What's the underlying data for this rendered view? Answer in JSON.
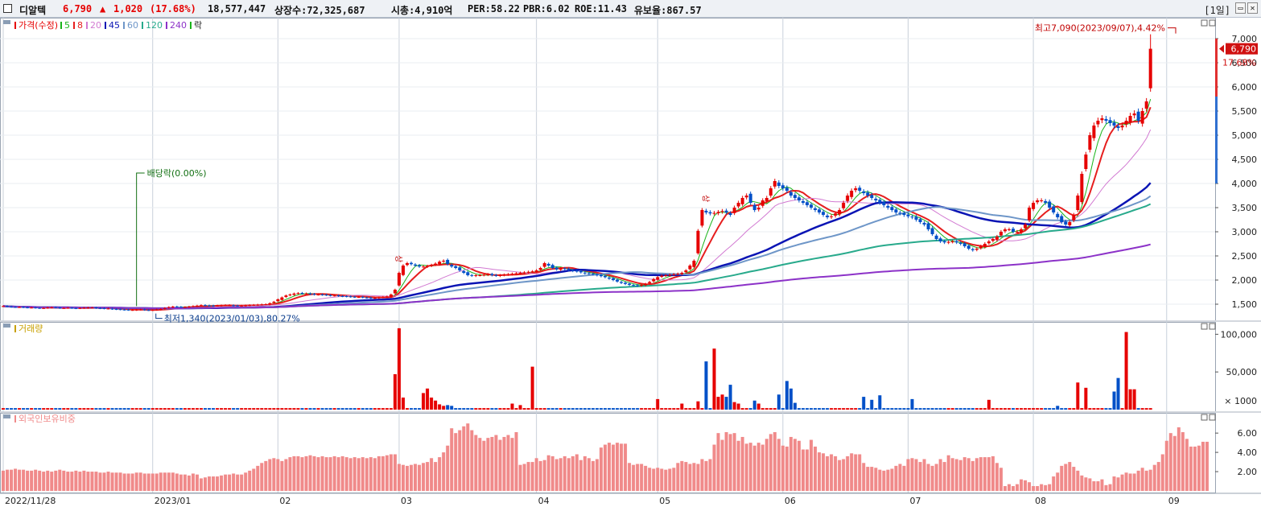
{
  "header": {
    "name": "디알텍",
    "price": "6,790",
    "change_arrow": "▲",
    "change": "1,020",
    "change_pct": "(17.68%)",
    "volume": "18,577,447",
    "listed_shares": "상장수:72,325,687",
    "market_cap": "시총:4,910억",
    "per": "PER:58.22",
    "pbr": "PBR:6.02",
    "roe": "ROE:11.43",
    "reserve_ratio": "유보율:867.57",
    "period": "[1일]",
    "colors": {
      "up": "#e60000",
      "down": "#0050c8"
    }
  },
  "legend": {
    "price_label": "가격(수정)",
    "ma_labels": [
      "5",
      "8",
      "20",
      "45",
      "60",
      "120",
      "240"
    ],
    "ma_colors": [
      "#19b419",
      "#e61e1e",
      "#d27ad2",
      "#0a14b4",
      "#6e96c8",
      "#28aa8c",
      "#8c32c8"
    ],
    "drop_label": "락",
    "volume_label": "거래량",
    "foreign_label": "외국인보유비중"
  },
  "annotations": {
    "high": "최고7,090(2023/09/07),4.42%",
    "low": "최저1,340(2023/01/03),80.27%",
    "dividend": "배당락(0.00%)",
    "up_mark": "상",
    "current_price": "6,790",
    "current_pct": "17.68%",
    "volume_unit": "× 1000"
  },
  "chart_data": [
    {
      "type": "candlestick",
      "title": "가격(수정)",
      "ylim": [
        1200,
        7300
      ],
      "y_ticks": [
        "1,500",
        "2,000",
        "2,500",
        "3,000",
        "3,500",
        "4,000",
        "4,500",
        "5,000",
        "5,500",
        "6,000",
        "6,500",
        "7,000"
      ],
      "y_tick_values": [
        1500,
        2000,
        2500,
        3000,
        3500,
        4000,
        4500,
        5000,
        5500,
        6000,
        6500,
        7000
      ],
      "x_ticks": [
        "2022/11/28",
        "2023/01",
        "02",
        "03",
        "04",
        "05",
        "06",
        "07",
        "08",
        "09"
      ],
      "x_tick_index": [
        0,
        37,
        68,
        98,
        132,
        162,
        193,
        224,
        255,
        288
      ],
      "closes": [
        1460,
        1450,
        1445,
        1440,
        1440,
        1435,
        1430,
        1430,
        1425,
        1420,
        1420,
        1430,
        1435,
        1430,
        1420,
        1420,
        1425,
        1420,
        1415,
        1420,
        1425,
        1430,
        1430,
        1420,
        1415,
        1410,
        1410,
        1400,
        1395,
        1390,
        1385,
        1380,
        1380,
        1385,
        1390,
        1380,
        1375,
        1380,
        1390,
        1400,
        1420,
        1440,
        1450,
        1445,
        1440,
        1440,
        1450,
        1460,
        1470,
        1480,
        1475,
        1470,
        1465,
        1470,
        1475,
        1480,
        1480,
        1470,
        1465,
        1470,
        1475,
        1480,
        1485,
        1490,
        1495,
        1500,
        1520,
        1550,
        1600,
        1640,
        1680,
        1700,
        1720,
        1730,
        1720,
        1720,
        1710,
        1700,
        1700,
        1695,
        1690,
        1680,
        1680,
        1670,
        1665,
        1660,
        1655,
        1650,
        1650,
        1640,
        1635,
        1630,
        1630,
        1640,
        1650,
        1660,
        1700,
        1800,
        2150,
        2300,
        2350,
        2330,
        2300,
        2280,
        2280,
        2290,
        2310,
        2340,
        2380,
        2400,
        2330,
        2280,
        2250,
        2200,
        2150,
        2100,
        2090,
        2100,
        2100,
        2110,
        2120,
        2100,
        2090,
        2100,
        2110,
        2120,
        2130,
        2140,
        2150,
        2160,
        2170,
        2180,
        2200,
        2250,
        2350,
        2300,
        2250,
        2220,
        2240,
        2230,
        2210,
        2190,
        2180,
        2160,
        2140,
        2130,
        2120,
        2100,
        2080,
        2060,
        2030,
        2000,
        1970,
        1940,
        1920,
        1900,
        1890,
        1880,
        1900,
        1920,
        1960,
        2020,
        2060,
        2090,
        2100,
        2110,
        2120,
        2130,
        2150,
        2200,
        2300,
        2400,
        3020,
        3450,
        3400,
        3380,
        3390,
        3410,
        3430,
        3400,
        3350,
        3500,
        3600,
        3700,
        3750,
        3600,
        3450,
        3500,
        3650,
        3700,
        3900,
        4050,
        3950,
        3900,
        3850,
        3750,
        3700,
        3650,
        3600,
        3550,
        3500,
        3450,
        3400,
        3350,
        3300,
        3320,
        3380,
        3450,
        3600,
        3750,
        3850,
        3900,
        3850,
        3800,
        3750,
        3700,
        3650,
        3600,
        3550,
        3500,
        3450,
        3400,
        3380,
        3350,
        3320,
        3300,
        3250,
        3200,
        3150,
        3050,
        2950,
        2850,
        2800,
        2780,
        2790,
        2800,
        2780,
        2750,
        2700,
        2650,
        2620,
        2650,
        2700,
        2750,
        2800,
        2850,
        2900,
        3000,
        3050,
        3050,
        3000,
        3000,
        3050,
        3150,
        3500,
        3600,
        3650,
        3650,
        3600,
        3500,
        3400,
        3300,
        3200,
        3150,
        3200,
        3350,
        3750,
        4200,
        4600,
        5000,
        5200,
        5300,
        5350,
        5300,
        5250,
        5200,
        5150,
        5200,
        5300,
        5400,
        5450,
        5300,
        5500,
        5700,
        6790
      ],
      "current_close": 6790,
      "high": 7090,
      "low": 1340,
      "series": [
        {
          "name": "5",
          "values": []
        },
        {
          "name": "8",
          "values": []
        },
        {
          "name": "20",
          "values": []
        },
        {
          "name": "45",
          "values": []
        },
        {
          "name": "60",
          "values": []
        },
        {
          "name": "120",
          "values": []
        },
        {
          "name": "240",
          "values": []
        }
      ]
    },
    {
      "type": "bar",
      "title": "거래량",
      "ylim": [
        0,
        110000
      ],
      "y_ticks": [
        "50,000",
        "100,000"
      ],
      "y_tick_values": [
        50000,
        100000
      ],
      "unit": "× 1000",
      "spikes": [
        [
          97,
          47000
        ],
        [
          98,
          108000
        ],
        [
          99,
          16000
        ],
        [
          104,
          22000
        ],
        [
          105,
          28000
        ],
        [
          106,
          16000
        ],
        [
          107,
          12000
        ],
        [
          108,
          7000
        ],
        [
          109,
          5000
        ],
        [
          110,
          6000
        ],
        [
          111,
          5000
        ],
        [
          126,
          8000
        ],
        [
          128,
          6000
        ],
        [
          131,
          57000
        ],
        [
          162,
          14000
        ],
        [
          168,
          8000
        ],
        [
          172,
          11000
        ],
        [
          174,
          64000
        ],
        [
          176,
          81000
        ],
        [
          177,
          17000
        ],
        [
          178,
          20000
        ],
        [
          179,
          17000
        ],
        [
          180,
          33000
        ],
        [
          181,
          10000
        ],
        [
          182,
          8000
        ],
        [
          186,
          12000
        ],
        [
          187,
          8000
        ],
        [
          192,
          20000
        ],
        [
          194,
          38000
        ],
        [
          195,
          28000
        ],
        [
          196,
          9000
        ],
        [
          213,
          17000
        ],
        [
          215,
          13000
        ],
        [
          217,
          19000
        ],
        [
          225,
          14000
        ],
        [
          244,
          13000
        ],
        [
          261,
          5000
        ],
        [
          266,
          36000
        ],
        [
          268,
          29000
        ],
        [
          275,
          24000
        ],
        [
          276,
          42000
        ],
        [
          278,
          103000
        ],
        [
          279,
          27000
        ],
        [
          280,
          27000
        ],
        [
          290,
          10000
        ],
        [
          292,
          14000
        ]
      ],
      "base": 2000
    },
    {
      "type": "bar",
      "title": "외국인보유비중",
      "ylim": [
        0,
        7.6
      ],
      "y_ticks": [
        "2.00",
        "4.00",
        "6.00"
      ],
      "y_tick_values": [
        2,
        4,
        6
      ],
      "values": [
        2.1,
        2.2,
        2.2,
        2.3,
        2.2,
        2.2,
        2.1,
        2.1,
        2.2,
        2.1,
        2.0,
        2.1,
        2.0,
        2.1,
        2.2,
        2.1,
        2.0,
        2.0,
        2.1,
        2.0,
        2.1,
        2.0,
        2.0,
        2.0,
        1.9,
        1.9,
        2.0,
        1.9,
        1.9,
        1.9,
        1.8,
        1.8,
        1.8,
        1.9,
        1.9,
        1.8,
        1.8,
        1.8,
        1.8,
        1.9,
        1.9,
        1.9,
        1.9,
        1.8,
        1.7,
        1.7,
        1.6,
        1.8,
        1.7,
        1.3,
        1.4,
        1.5,
        1.5,
        1.5,
        1.6,
        1.7,
        1.7,
        1.8,
        1.7,
        1.7,
        1.9,
        2.1,
        2.3,
        2.6,
        2.9,
        3.1,
        3.3,
        3.4,
        3.3,
        3.1,
        3.3,
        3.5,
        3.6,
        3.6,
        3.5,
        3.6,
        3.7,
        3.6,
        3.5,
        3.6,
        3.5,
        3.5,
        3.6,
        3.5,
        3.6,
        3.5,
        3.4,
        3.5,
        3.4,
        3.5,
        3.4,
        3.5,
        3.4,
        3.6,
        3.6,
        3.7,
        3.8,
        3.8,
        2.8,
        2.7,
        2.6,
        2.7,
        2.8,
        2.7,
        2.9,
        3.0,
        3.4,
        3.0,
        3.5,
        4.0,
        4.7,
        6.5,
        6.0,
        6.3,
        6.7,
        7.0,
        6.3,
        5.8,
        5.5,
        5.2,
        5.5,
        5.6,
        5.8,
        5.3,
        5.6,
        5.8,
        5.5,
        6.1,
        2.7,
        2.8,
        3.0,
        3.0,
        3.4,
        3.1,
        3.2,
        3.7,
        3.6,
        3.3,
        3.4,
        3.6,
        3.4,
        3.6,
        3.8,
        3.2,
        3.6,
        3.4,
        3.1,
        3.3,
        4.5,
        4.8,
        5.0,
        4.8,
        5.0,
        4.9,
        4.9,
        2.9,
        2.7,
        2.8,
        2.8,
        2.6,
        2.4,
        2.3,
        2.4,
        2.3,
        2.2,
        2.3,
        2.4,
        2.9,
        3.1,
        3.0,
        2.8,
        2.9,
        2.8,
        3.3,
        3.1,
        3.3,
        4.8,
        6.0,
        5.3,
        6.1,
        5.9,
        6.0,
        5.2,
        5.6,
        4.9,
        5.0,
        4.7,
        5.0,
        4.8,
        5.4,
        5.9,
        6.1,
        5.4,
        4.7,
        4.6,
        5.6,
        5.4,
        5.2,
        4.3,
        4.3,
        5.3,
        4.6,
        4.0,
        3.9,
        3.6,
        3.8,
        3.6,
        3.2,
        3.3,
        3.6,
        3.9,
        3.8,
        3.8,
        2.9,
        2.5,
        2.5,
        2.4,
        2.2,
        2.1,
        2.2,
        2.3,
        2.6,
        2.8,
        2.6,
        3.3,
        3.4,
        3.3,
        3.0,
        3.3,
        2.8,
        2.6,
        2.8,
        3.3,
        3.0,
        3.7,
        3.4,
        3.3,
        3.2,
        3.5,
        3.4,
        3.1,
        3.4,
        3.5,
        3.5,
        3.5,
        3.6,
        2.9,
        2.4,
        0.5,
        0.7,
        0.5,
        0.7,
        1.2,
        1.1,
        0.9,
        0.5,
        0.5,
        0.7,
        0.6,
        0.7,
        1.5,
        1.9,
        2.6,
        2.8,
        3.0,
        2.5,
        2.1,
        1.6,
        1.4,
        1.3,
        1.0,
        1.0,
        1.2,
        0.6,
        0.7,
        1.5,
        1.4,
        1.7,
        1.9,
        1.8,
        1.8,
        2.1,
        2.4,
        2.1,
        2.2,
        2.7,
        3.0,
        3.8,
        5.2,
        6.0,
        5.7,
        6.6,
        6.1,
        5.4,
        4.6,
        4.6,
        4.7,
        5.1,
        5.1
      ]
    }
  ]
}
